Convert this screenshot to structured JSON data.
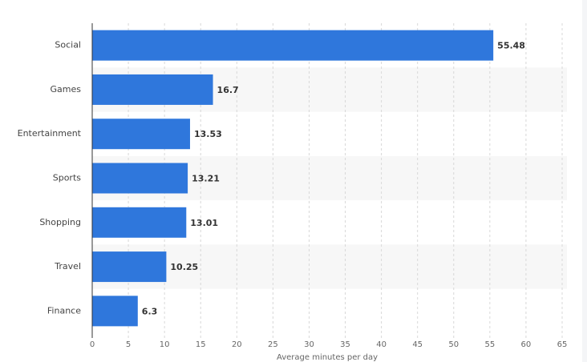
{
  "chart_data": {
    "type": "bar",
    "orientation": "horizontal",
    "categories": [
      "Social",
      "Games",
      "Entertainment",
      "Sports",
      "Shopping",
      "Travel",
      "Finance"
    ],
    "values": [
      55.48,
      16.7,
      13.53,
      13.21,
      13.01,
      10.25,
      6.3
    ],
    "color": "#2f77dc",
    "xlim": [
      0,
      65
    ],
    "xticks": [
      0,
      5,
      10,
      15,
      20,
      25,
      30,
      35,
      40,
      45,
      50,
      55,
      60,
      65
    ],
    "x_label": "Average minutes per day",
    "grid": true,
    "striped_rows": true
  }
}
